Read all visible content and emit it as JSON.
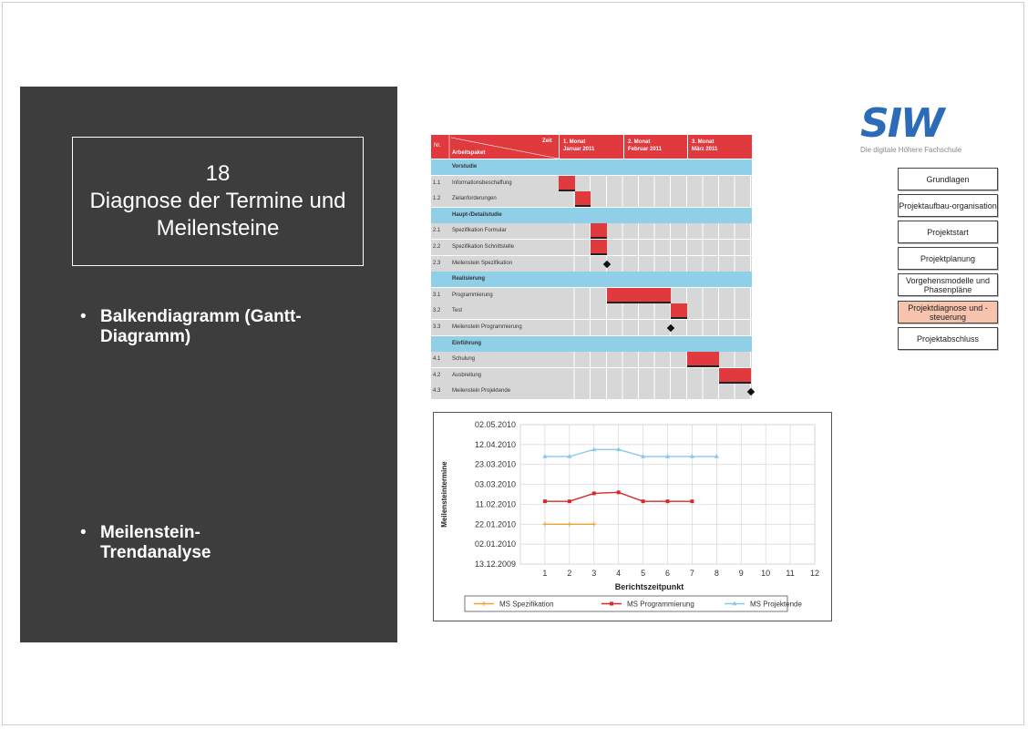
{
  "slide": {
    "number": "18",
    "title": "Diagnose der Termine und Meilensteine",
    "bullets": [
      "Balkendiagramm (Gantt-Diagramm)",
      "Meilenstein-Trendanalyse"
    ]
  },
  "gantt": {
    "header": {
      "nr": "Nr.",
      "zeit": "Zeit",
      "arbeitspaket": "Arbeitspaket",
      "months": [
        {
          "line1": "1. Monat",
          "line2": "Januar 2011"
        },
        {
          "line1": "2. Monat",
          "line2": "Februar 2011"
        },
        {
          "line1": "3. Monat",
          "line2": "März 2011"
        }
      ]
    },
    "rows": [
      {
        "kind": "section",
        "nr": "",
        "label": "Vorstudie"
      },
      {
        "kind": "task",
        "nr": "1.1",
        "label": "Informationsbeschaffung",
        "bar_start": 0,
        "bar_len": 1
      },
      {
        "kind": "task",
        "nr": "1.2",
        "label": "Zielanforderungen",
        "bar_start": 1,
        "bar_len": 1
      },
      {
        "kind": "section",
        "nr": "",
        "label": "Haupt-/Detailstudie"
      },
      {
        "kind": "task",
        "nr": "2.1",
        "label": "Spezifikation Formular",
        "bar_start": 2,
        "bar_len": 1
      },
      {
        "kind": "task",
        "nr": "2.2",
        "label": "Spezifikation Schnittstelle",
        "bar_start": 2,
        "bar_len": 1
      },
      {
        "kind": "milestone",
        "nr": "2.3",
        "label": "Meilenstein Spezifikation",
        "at": 3
      },
      {
        "kind": "section",
        "nr": "",
        "label": "Realisierung"
      },
      {
        "kind": "task",
        "nr": "3.1",
        "label": "Programmierung",
        "bar_start": 3,
        "bar_len": 4
      },
      {
        "kind": "task",
        "nr": "3.2",
        "label": "Test",
        "bar_start": 7,
        "bar_len": 1
      },
      {
        "kind": "milestone",
        "nr": "3.3",
        "label": "Meilenstein Programmierung",
        "at": 7
      },
      {
        "kind": "section",
        "nr": "",
        "label": "Einführung"
      },
      {
        "kind": "task",
        "nr": "4.1",
        "label": "Schulung",
        "bar_start": 8,
        "bar_len": 2
      },
      {
        "kind": "task",
        "nr": "4.2",
        "label": "Ausbreitung",
        "bar_start": 10,
        "bar_len": 2
      },
      {
        "kind": "milestone",
        "nr": "4.3",
        "label": "Meilenstein Projektende",
        "at": 12
      }
    ]
  },
  "logo": {
    "text": "SIW",
    "subtitle": "Die digitale Höhere Fachschule",
    "color": "#2b6bb8"
  },
  "nav": {
    "items": [
      {
        "label": "Grundlagen",
        "active": false
      },
      {
        "label": "Projektaufbau-organisation",
        "active": false
      },
      {
        "label": "Projektstart",
        "active": false
      },
      {
        "label": "Projektplanung",
        "active": false
      },
      {
        "label": "Vorgehensmodelle und Phasenpläne",
        "active": false
      },
      {
        "label": "Projektdiagnose und -steuerung",
        "active": true
      },
      {
        "label": "Projektabschluss",
        "active": false
      }
    ]
  },
  "chart_data": {
    "type": "line",
    "xlabel": "Berichtszeitpunkt",
    "ylabel": "Meilensteintermine",
    "x_ticks": [
      1,
      2,
      3,
      4,
      5,
      6,
      7,
      8,
      9,
      10,
      11,
      12
    ],
    "y_ticks": [
      "13.12.2009",
      "02.01.2010",
      "22.01.2010",
      "11.02.2010",
      "03.03.2010",
      "23.03.2010",
      "12.04.2010",
      "02.05.2010"
    ],
    "y_tick_days": [
      0,
      20,
      40,
      60,
      80,
      100,
      120,
      140
    ],
    "grid": true,
    "legend": "bottom",
    "series": [
      {
        "name": "MS Spezifikation",
        "color": "#f0a030",
        "x": [
          1,
          2,
          3
        ],
        "y": [
          "22.01.2010",
          "22.01.2010",
          "22.01.2010"
        ],
        "y_days": [
          40,
          40,
          40
        ]
      },
      {
        "name": "MS Programmierung",
        "color": "#d42a2a",
        "x": [
          1,
          2,
          3,
          4,
          5,
          6,
          7
        ],
        "y": [
          "14.02.2010",
          "14.02.2010",
          "22.02.2010",
          "23.02.2010",
          "14.02.2010",
          "14.02.2010",
          "14.02.2010"
        ],
        "y_days": [
          63,
          63,
          71,
          72,
          63,
          63,
          63
        ]
      },
      {
        "name": "MS Projektende",
        "color": "#8cc8e8",
        "x": [
          1,
          2,
          3,
          4,
          5,
          6,
          7,
          8
        ],
        "y": [
          "31.03.2010",
          "31.03.2010",
          "07.04.2010",
          "07.04.2010",
          "31.03.2010",
          "31.03.2010",
          "31.03.2010",
          "31.03.2010"
        ],
        "y_days": [
          108,
          108,
          115,
          115,
          108,
          108,
          108,
          108
        ]
      }
    ]
  }
}
